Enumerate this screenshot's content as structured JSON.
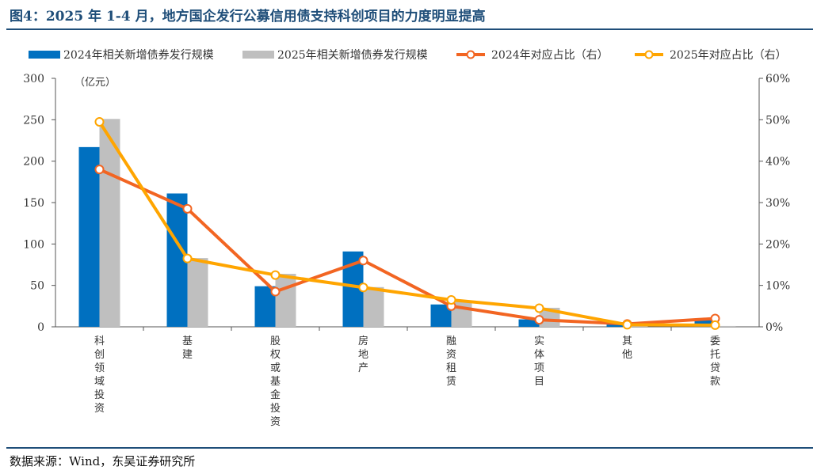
{
  "title": "图4：2025 年 1-4 月，地方国企发行公募信用债支持科创项目的力度明显提高",
  "source": "数据来源：Wind，东吴证券研究所",
  "chart_data": {
    "type": "bar",
    "categories": [
      "科创领域投资",
      "基建",
      "股权或基金投资",
      "房地产",
      "融资租赁",
      "实体项目",
      "其他",
      "委托贷款"
    ],
    "y_left_unit": "（亿元）",
    "y_left_lim": [
      0,
      300
    ],
    "y_left_ticks": [
      "0",
      "50",
      "100",
      "150",
      "200",
      "250",
      "300"
    ],
    "y_right_lim": [
      0,
      60
    ],
    "y_right_ticks": [
      "0%",
      "10%",
      "20%",
      "30%",
      "40%",
      "50%",
      "60%"
    ],
    "legend_position": "top",
    "grid": false,
    "series": [
      {
        "name": "2024年相关新增债券发行规模",
        "kind": "bar",
        "axis": "left",
        "color": "#0070c0",
        "values": [
          217,
          161,
          49,
          91,
          27,
          9,
          3,
          8
        ]
      },
      {
        "name": "2025年相关新增债券发行规模",
        "kind": "bar",
        "axis": "left",
        "color": "#bfbfbf",
        "values": [
          251,
          83,
          64,
          48,
          32,
          23,
          3,
          1
        ]
      },
      {
        "name": "2024年对应占比（右）",
        "kind": "line",
        "axis": "right",
        "color": "#f26522",
        "values": [
          38,
          28.5,
          8.5,
          16,
          5,
          1.7,
          0.7,
          2
        ]
      },
      {
        "name": "2025年对应占比（右）",
        "kind": "line",
        "axis": "right",
        "color": "#ffa500",
        "values": [
          49.5,
          16.5,
          12.5,
          9.5,
          6.5,
          4.5,
          0.5,
          0.4
        ]
      }
    ]
  }
}
